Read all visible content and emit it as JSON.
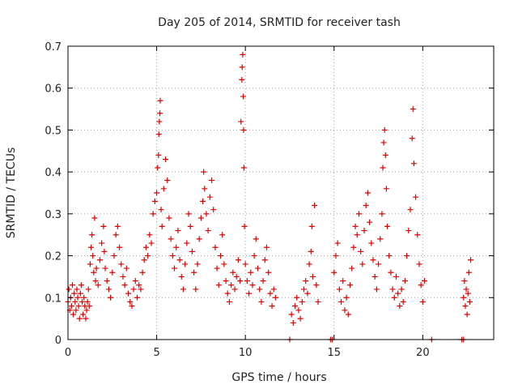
{
  "chart_data": {
    "type": "scatter",
    "title": "Day 205 of 2014, SRMTID for receiver tash",
    "xlabel": "GPS time / hours",
    "ylabel": "SRMTID / TECUs",
    "xlim": [
      0,
      24
    ],
    "ylim": [
      0,
      0.7
    ],
    "xticks": [
      0,
      5,
      10,
      15,
      20
    ],
    "yticks": [
      0,
      0.1,
      0.2,
      0.3,
      0.4,
      0.5,
      0.6,
      0.7
    ],
    "xtick_labels": [
      "0",
      "5",
      "10",
      "15",
      "20"
    ],
    "ytick_labels": [
      "0",
      "0.1",
      "0.2",
      "0.3",
      "0.4",
      "0.5",
      "0.6",
      "0.7"
    ],
    "grid": true,
    "marker": "+",
    "series": [
      {
        "name": "SRMTID",
        "color": "#e00000",
        "points": [
          [
            0.0,
            0.09
          ],
          [
            0.05,
            0.12
          ],
          [
            0.1,
            0.07
          ],
          [
            0.15,
            0.1
          ],
          [
            0.2,
            0.08
          ],
          [
            0.25,
            0.13
          ],
          [
            0.3,
            0.06
          ],
          [
            0.35,
            0.11
          ],
          [
            0.4,
            0.09
          ],
          [
            0.45,
            0.07
          ],
          [
            0.5,
            0.12
          ],
          [
            0.55,
            0.1
          ],
          [
            0.6,
            0.08
          ],
          [
            0.65,
            0.05
          ],
          [
            0.7,
            0.11
          ],
          [
            0.75,
            0.13
          ],
          [
            0.8,
            0.09
          ],
          [
            0.85,
            0.06
          ],
          [
            0.9,
            0.1
          ],
          [
            0.95,
            0.08
          ],
          [
            1.0,
            0.05
          ],
          [
            1.05,
            0.07
          ],
          [
            1.1,
            0.09
          ],
          [
            1.15,
            0.12
          ],
          [
            1.2,
            0.08
          ],
          [
            1.25,
            0.18
          ],
          [
            1.3,
            0.22
          ],
          [
            1.35,
            0.25
          ],
          [
            1.4,
            0.2
          ],
          [
            1.45,
            0.16
          ],
          [
            1.5,
            0.29
          ],
          [
            1.55,
            0.14
          ],
          [
            1.6,
            0.17
          ],
          [
            1.7,
            0.13
          ],
          [
            1.8,
            0.19
          ],
          [
            1.9,
            0.23
          ],
          [
            2.0,
            0.27
          ],
          [
            2.05,
            0.21
          ],
          [
            2.1,
            0.17
          ],
          [
            2.2,
            0.14
          ],
          [
            2.3,
            0.12
          ],
          [
            2.4,
            0.1
          ],
          [
            2.5,
            0.16
          ],
          [
            2.6,
            0.2
          ],
          [
            2.7,
            0.25
          ],
          [
            2.8,
            0.27
          ],
          [
            2.9,
            0.22
          ],
          [
            3.0,
            0.18
          ],
          [
            3.1,
            0.15
          ],
          [
            3.2,
            0.13
          ],
          [
            3.3,
            0.17
          ],
          [
            3.4,
            0.11
          ],
          [
            3.5,
            0.09
          ],
          [
            3.6,
            0.08
          ],
          [
            3.7,
            0.12
          ],
          [
            3.8,
            0.14
          ],
          [
            3.9,
            0.1
          ],
          [
            4.0,
            0.13
          ],
          [
            4.1,
            0.12
          ],
          [
            4.2,
            0.16
          ],
          [
            4.3,
            0.19
          ],
          [
            4.4,
            0.22
          ],
          [
            4.5,
            0.2
          ],
          [
            4.6,
            0.25
          ],
          [
            4.7,
            0.23
          ],
          [
            4.8,
            0.3
          ],
          [
            4.9,
            0.33
          ],
          [
            5.0,
            0.35
          ],
          [
            5.05,
            0.41
          ],
          [
            5.1,
            0.44
          ],
          [
            5.12,
            0.49
          ],
          [
            5.15,
            0.52
          ],
          [
            5.18,
            0.54
          ],
          [
            5.2,
            0.57
          ],
          [
            5.25,
            0.31
          ],
          [
            5.3,
            0.27
          ],
          [
            5.4,
            0.36
          ],
          [
            5.5,
            0.43
          ],
          [
            5.6,
            0.38
          ],
          [
            5.7,
            0.29
          ],
          [
            5.8,
            0.24
          ],
          [
            5.9,
            0.2
          ],
          [
            6.0,
            0.17
          ],
          [
            6.1,
            0.22
          ],
          [
            6.2,
            0.26
          ],
          [
            6.3,
            0.19
          ],
          [
            6.4,
            0.15
          ],
          [
            6.5,
            0.12
          ],
          [
            6.6,
            0.18
          ],
          [
            6.7,
            0.23
          ],
          [
            6.8,
            0.3
          ],
          [
            6.9,
            0.27
          ],
          [
            7.0,
            0.21
          ],
          [
            7.1,
            0.16
          ],
          [
            7.2,
            0.12
          ],
          [
            7.3,
            0.18
          ],
          [
            7.4,
            0.24
          ],
          [
            7.5,
            0.29
          ],
          [
            7.6,
            0.33
          ],
          [
            7.65,
            0.4
          ],
          [
            7.7,
            0.36
          ],
          [
            7.8,
            0.3
          ],
          [
            7.9,
            0.26
          ],
          [
            8.0,
            0.34
          ],
          [
            8.1,
            0.38
          ],
          [
            8.2,
            0.31
          ],
          [
            8.3,
            0.22
          ],
          [
            8.4,
            0.17
          ],
          [
            8.5,
            0.13
          ],
          [
            8.6,
            0.2
          ],
          [
            8.7,
            0.25
          ],
          [
            8.8,
            0.18
          ],
          [
            8.9,
            0.14
          ],
          [
            9.0,
            0.11
          ],
          [
            9.1,
            0.09
          ],
          [
            9.2,
            0.13
          ],
          [
            9.3,
            0.16
          ],
          [
            9.4,
            0.12
          ],
          [
            9.5,
            0.15
          ],
          [
            9.6,
            0.19
          ],
          [
            9.7,
            0.14
          ],
          [
            9.75,
            0.52
          ],
          [
            9.8,
            0.62
          ],
          [
            9.82,
            0.65
          ],
          [
            9.85,
            0.68
          ],
          [
            9.88,
            0.58
          ],
          [
            9.9,
            0.5
          ],
          [
            9.92,
            0.41
          ],
          [
            9.95,
            0.27
          ],
          [
            10.0,
            0.18
          ],
          [
            10.1,
            0.14
          ],
          [
            10.2,
            0.11
          ],
          [
            10.3,
            0.16
          ],
          [
            10.4,
            0.13
          ],
          [
            10.5,
            0.2
          ],
          [
            10.6,
            0.24
          ],
          [
            10.7,
            0.17
          ],
          [
            10.8,
            0.12
          ],
          [
            10.9,
            0.09
          ],
          [
            11.0,
            0.14
          ],
          [
            11.1,
            0.19
          ],
          [
            11.2,
            0.22
          ],
          [
            11.3,
            0.16
          ],
          [
            11.4,
            0.11
          ],
          [
            11.5,
            0.08
          ],
          [
            11.6,
            0.12
          ],
          [
            11.7,
            0.1
          ],
          [
            12.5,
            0.0
          ],
          [
            12.6,
            0.06
          ],
          [
            12.7,
            0.04
          ],
          [
            12.8,
            0.08
          ],
          [
            12.9,
            0.1
          ],
          [
            13.0,
            0.07
          ],
          [
            13.1,
            0.05
          ],
          [
            13.2,
            0.09
          ],
          [
            13.3,
            0.12
          ],
          [
            13.4,
            0.14
          ],
          [
            13.5,
            0.11
          ],
          [
            13.6,
            0.18
          ],
          [
            13.7,
            0.21
          ],
          [
            13.75,
            0.27
          ],
          [
            13.8,
            0.15
          ],
          [
            13.9,
            0.32
          ],
          [
            14.0,
            0.13
          ],
          [
            14.1,
            0.09
          ],
          [
            14.8,
            0.0
          ],
          [
            14.9,
            0.0
          ],
          [
            15.0,
            0.16
          ],
          [
            15.1,
            0.2
          ],
          [
            15.2,
            0.23
          ],
          [
            15.3,
            0.12
          ],
          [
            15.4,
            0.09
          ],
          [
            15.5,
            0.14
          ],
          [
            15.6,
            0.07
          ],
          [
            15.7,
            0.1
          ],
          [
            15.8,
            0.06
          ],
          [
            15.9,
            0.13
          ],
          [
            16.0,
            0.17
          ],
          [
            16.1,
            0.22
          ],
          [
            16.2,
            0.27
          ],
          [
            16.3,
            0.25
          ],
          [
            16.4,
            0.3
          ],
          [
            16.5,
            0.21
          ],
          [
            16.6,
            0.18
          ],
          [
            16.7,
            0.26
          ],
          [
            16.8,
            0.32
          ],
          [
            16.9,
            0.35
          ],
          [
            17.0,
            0.28
          ],
          [
            17.1,
            0.23
          ],
          [
            17.2,
            0.19
          ],
          [
            17.3,
            0.15
          ],
          [
            17.4,
            0.12
          ],
          [
            17.5,
            0.18
          ],
          [
            17.6,
            0.24
          ],
          [
            17.7,
            0.3
          ],
          [
            17.75,
            0.41
          ],
          [
            17.8,
            0.47
          ],
          [
            17.85,
            0.5
          ],
          [
            17.9,
            0.44
          ],
          [
            17.95,
            0.36
          ],
          [
            18.0,
            0.27
          ],
          [
            18.1,
            0.2
          ],
          [
            18.2,
            0.16
          ],
          [
            18.3,
            0.12
          ],
          [
            18.4,
            0.1
          ],
          [
            18.5,
            0.15
          ],
          [
            18.6,
            0.11
          ],
          [
            18.7,
            0.08
          ],
          [
            18.8,
            0.12
          ],
          [
            18.9,
            0.09
          ],
          [
            19.0,
            0.14
          ],
          [
            19.1,
            0.2
          ],
          [
            19.2,
            0.26
          ],
          [
            19.3,
            0.31
          ],
          [
            19.4,
            0.48
          ],
          [
            19.45,
            0.55
          ],
          [
            19.5,
            0.42
          ],
          [
            19.6,
            0.34
          ],
          [
            19.7,
            0.25
          ],
          [
            19.8,
            0.18
          ],
          [
            19.9,
            0.13
          ],
          [
            20.0,
            0.09
          ],
          [
            20.1,
            0.14
          ],
          [
            20.5,
            0.0
          ],
          [
            22.2,
            0.0
          ],
          [
            22.3,
            0.0
          ],
          [
            22.3,
            0.1
          ],
          [
            22.35,
            0.14
          ],
          [
            22.4,
            0.08
          ],
          [
            22.45,
            0.12
          ],
          [
            22.5,
            0.06
          ],
          [
            22.55,
            0.11
          ],
          [
            22.6,
            0.16
          ],
          [
            22.65,
            0.09
          ],
          [
            22.7,
            0.19
          ]
        ]
      }
    ]
  }
}
